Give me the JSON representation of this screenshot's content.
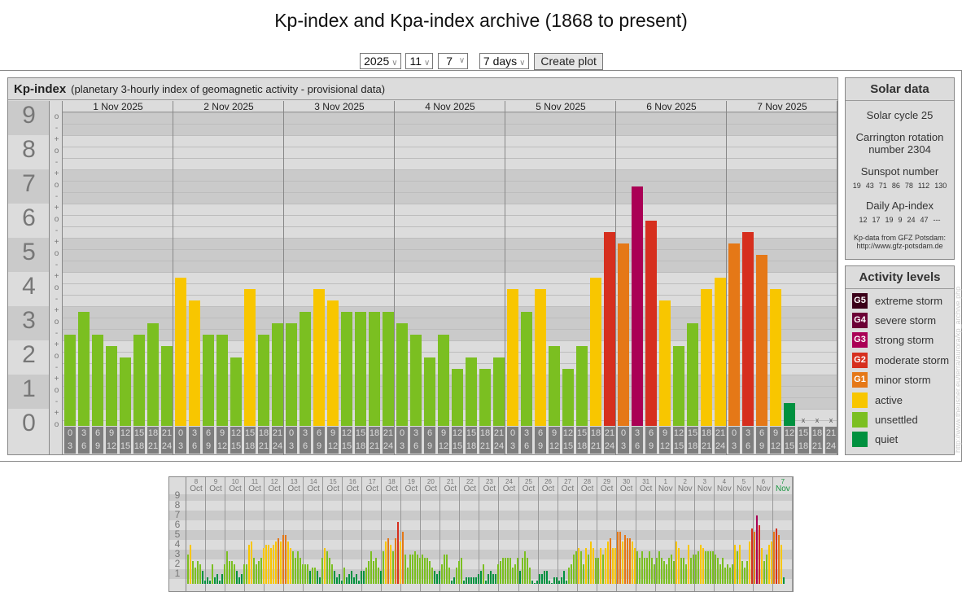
{
  "title": "Kp-index and Kpa-index archive (1868 to present)",
  "controls": {
    "year": "2025",
    "month": "11",
    "day": "7",
    "range": "7 days",
    "button": "Create plot"
  },
  "kp_panel": {
    "title": "Kp-index",
    "subtitle": "(planetary 3-hourly index of geomagnetic activity - provisional data)"
  },
  "colors": {
    "quiet": "#00913f",
    "unsettled": "#7bbf21",
    "active": "#f8c600",
    "G1": "#e57817",
    "G2": "#d62f1e",
    "G3": "#aa0055",
    "G4": "#6b0035",
    "G5": "#3a0018",
    "band_dark": "#cacaca",
    "band_light": "#dcdcdc",
    "future_day": "#1a9641"
  },
  "chart_data": [
    {
      "type": "bar",
      "title": "Kp-index",
      "ylim": [
        0,
        9
      ],
      "yticks": [
        "0",
        "1",
        "2",
        "3",
        "4",
        "5",
        "6",
        "7",
        "8",
        "9"
      ],
      "subdivisions": [
        "+",
        "o",
        "-"
      ],
      "days": [
        "1 Nov 2025",
        "2 Nov 2025",
        "3 Nov 2025",
        "4 Nov 2025",
        "5 Nov 2025",
        "6 Nov 2025",
        "7 Nov 2025"
      ],
      "intervals": [
        [
          "0",
          "3"
        ],
        [
          "3",
          "6"
        ],
        [
          "6",
          "9"
        ],
        [
          "9",
          "12"
        ],
        [
          "12",
          "15"
        ],
        [
          "15",
          "18"
        ],
        [
          "18",
          "21"
        ],
        [
          "21",
          "24"
        ]
      ],
      "missing_marker": "x",
      "values": [
        [
          2.67,
          3.33,
          2.67,
          2.33,
          2,
          2.67,
          3,
          2.33
        ],
        [
          4.33,
          3.67,
          2.67,
          2.67,
          2,
          4,
          2.67,
          3
        ],
        [
          3,
          3.33,
          4,
          3.67,
          3.33,
          3.33,
          3.33,
          3.33
        ],
        [
          3,
          2.67,
          2,
          2.67,
          1.67,
          2,
          1.67,
          2
        ],
        [
          4,
          3.33,
          4,
          2.33,
          1.67,
          2.33,
          4.33,
          5.67
        ],
        [
          5.33,
          7,
          6,
          3.67,
          2.33,
          3,
          4,
          4.33
        ],
        [
          5.33,
          5.67,
          5,
          4,
          0.67,
          null,
          null,
          null
        ]
      ]
    },
    {
      "type": "bar",
      "title": "Kp overview",
      "ylim": [
        0,
        9
      ],
      "yticks": [
        "1",
        "2",
        "3",
        "4",
        "5",
        "6",
        "7",
        "8",
        "9"
      ],
      "days": [
        [
          "8",
          "Oct"
        ],
        [
          "9",
          "Oct"
        ],
        [
          "10",
          "Oct"
        ],
        [
          "11",
          "Oct"
        ],
        [
          "12",
          "Oct"
        ],
        [
          "13",
          "Oct"
        ],
        [
          "14",
          "Oct"
        ],
        [
          "15",
          "Oct"
        ],
        [
          "16",
          "Oct"
        ],
        [
          "17",
          "Oct"
        ],
        [
          "18",
          "Oct"
        ],
        [
          "19",
          "Oct"
        ],
        [
          "20",
          "Oct"
        ],
        [
          "21",
          "Oct"
        ],
        [
          "22",
          "Oct"
        ],
        [
          "23",
          "Oct"
        ],
        [
          "24",
          "Oct"
        ],
        [
          "25",
          "Oct"
        ],
        [
          "26",
          "Oct"
        ],
        [
          "27",
          "Oct"
        ],
        [
          "28",
          "Oct"
        ],
        [
          "29",
          "Oct"
        ],
        [
          "30",
          "Oct"
        ],
        [
          "31",
          "Oct"
        ],
        [
          "1",
          "Nov"
        ],
        [
          "2",
          "Nov"
        ],
        [
          "3",
          "Nov"
        ],
        [
          "4",
          "Nov"
        ],
        [
          "5",
          "Nov"
        ],
        [
          "6",
          "Nov"
        ],
        [
          "7",
          "Nov"
        ]
      ],
      "values": [
        [
          3,
          4,
          2.33,
          1.67,
          2.33,
          2,
          1.33,
          0.33
        ],
        [
          0.67,
          0.33,
          2,
          0.67,
          1,
          0.33,
          1,
          2
        ],
        [
          3.33,
          2.33,
          2.33,
          2,
          1.33,
          0.67,
          1,
          2
        ],
        [
          2,
          4,
          4.33,
          2.67,
          2,
          2.33,
          2.67,
          3.67
        ],
        [
          4,
          4,
          3.67,
          4,
          4.33,
          4.67,
          4.33,
          5
        ],
        [
          5,
          4.33,
          3.67,
          3.33,
          2.67,
          3.33,
          2.67,
          2
        ],
        [
          2,
          2,
          1.33,
          1.67,
          1.67,
          1.33,
          0.67,
          2.67
        ],
        [
          3.67,
          3.33,
          2.67,
          2,
          1.33,
          0.67,
          1,
          0.33
        ],
        [
          1.67,
          0.67,
          1,
          1.33,
          0.67,
          1,
          0.33,
          1.33
        ],
        [
          1.33,
          1.67,
          2.33,
          3.33,
          2.33,
          2.67,
          1.67,
          1.33
        ],
        [
          3.33,
          4.33,
          4.67,
          4,
          3.33,
          4.67,
          6.33,
          4.33
        ],
        [
          5.33,
          3,
          1.67,
          3,
          3,
          3.33,
          3,
          2.67
        ],
        [
          3,
          2.67,
          2.67,
          2.33,
          1.67,
          1.33,
          1,
          1.33
        ],
        [
          2,
          3,
          3,
          1.67,
          0.33,
          0.67,
          1.67,
          2.33
        ],
        [
          2.67,
          0.33,
          0.67,
          0.67,
          0.67,
          0.67,
          0.67,
          1
        ],
        [
          1.33,
          2,
          0.33,
          1,
          1.33,
          1,
          1,
          2
        ],
        [
          2.33,
          2.67,
          2.67,
          2.67,
          2.67,
          1.67,
          2,
          2.67
        ],
        [
          1.33,
          2.67,
          3.33,
          2.67,
          1.67,
          0.33,
          0,
          0.33
        ],
        [
          1,
          1,
          1.33,
          1.33,
          0.33,
          0,
          0.67,
          0.67
        ],
        [
          0.33,
          0.67,
          1.33,
          0.33,
          1.67,
          2,
          3,
          3.33
        ],
        [
          3.67,
          3.33,
          2,
          3.67,
          3,
          4.33,
          3.67,
          2.67
        ],
        [
          2.67,
          3.67,
          3,
          3.67,
          4.33,
          4.67,
          3.67,
          3.67
        ],
        [
          5.33,
          5.33,
          4.33,
          5,
          4.67,
          4.67,
          4.33,
          3.67
        ],
        [
          3.33,
          2.67,
          3.33,
          2.67,
          2.67,
          3.33,
          2.67,
          2
        ],
        [
          2.67,
          3.33,
          2.67,
          2.33,
          2,
          2.67,
          3,
          2.33
        ],
        [
          4.33,
          3.67,
          2.67,
          2.67,
          2,
          4,
          2.67,
          3
        ],
        [
          3,
          3.33,
          4,
          3.67,
          3.33,
          3.33,
          3.33,
          3.33
        ],
        [
          3,
          2.67,
          2,
          2.67,
          1.67,
          2,
          1.67,
          2
        ],
        [
          4,
          3.33,
          4,
          2.33,
          1.67,
          2.33,
          4.33,
          5.67
        ],
        [
          5.33,
          7,
          6,
          3.67,
          2.33,
          3,
          4,
          4.33
        ],
        [
          5.33,
          5.67,
          5,
          4,
          0.67,
          null,
          null,
          null
        ]
      ]
    }
  ],
  "solar": {
    "title": "Solar data",
    "cycle": "Solar cycle 25",
    "carrington1": "Carrington rotation",
    "carrington2": "number 2304",
    "sunspot_label": "Sunspot number",
    "sunspots": [
      "19",
      "43",
      "71",
      "86",
      "78",
      "112",
      "130"
    ],
    "ap_label": "Daily Ap-index",
    "ap": [
      "12",
      "17",
      "19",
      "9",
      "24",
      "47",
      "---"
    ],
    "source1": "Kp-data from GFZ Potsdam:",
    "source2": "http://www.gfz-potsdam.de"
  },
  "activity": {
    "title": "Activity levels",
    "levels": [
      {
        "code": "G5",
        "label": "extreme storm",
        "color": "#3a0018"
      },
      {
        "code": "G4",
        "label": "severe storm",
        "color": "#6b0035"
      },
      {
        "code": "G3",
        "label": "strong storm",
        "color": "#aa0055"
      },
      {
        "code": "G2",
        "label": "moderate storm",
        "color": "#d62f1e"
      },
      {
        "code": "G1",
        "label": "minor storm",
        "color": "#e57817"
      },
      {
        "code": "",
        "label": "active",
        "color": "#f8c600"
      },
      {
        "code": "",
        "label": "unsettled",
        "color": "#7bbf21"
      },
      {
        "code": "",
        "label": "quiet",
        "color": "#00913f"
      }
    ]
  },
  "watermark": "http://www.theusner.eu/terra/aurora/kp_archive.php"
}
